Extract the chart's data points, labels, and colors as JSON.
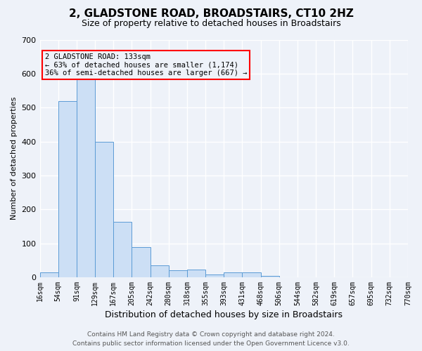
{
  "title": "2, GLADSTONE ROAD, BROADSTAIRS, CT10 2HZ",
  "subtitle": "Size of property relative to detached houses in Broadstairs",
  "xlabel": "Distribution of detached houses by size in Broadstairs",
  "ylabel": "Number of detached properties",
  "footer_line1": "Contains HM Land Registry data © Crown copyright and database right 2024.",
  "footer_line2": "Contains public sector information licensed under the Open Government Licence v3.0.",
  "bin_labels": [
    "16sqm",
    "54sqm",
    "91sqm",
    "129sqm",
    "167sqm",
    "205sqm",
    "242sqm",
    "280sqm",
    "318sqm",
    "355sqm",
    "393sqm",
    "431sqm",
    "468sqm",
    "506sqm",
    "544sqm",
    "582sqm",
    "619sqm",
    "657sqm",
    "695sqm",
    "732sqm",
    "770sqm"
  ],
  "bar_heights": [
    14,
    520,
    590,
    400,
    163,
    88,
    35,
    21,
    22,
    9,
    14,
    14,
    5,
    0,
    0,
    0,
    0,
    0,
    0,
    0
  ],
  "bar_color": "#ccdff5",
  "bar_edge_color": "#5b9bd5",
  "background_color": "#eef2f9",
  "grid_color": "#ffffff",
  "annotation_text_line1": "2 GLADSTONE ROAD: 133sqm",
  "annotation_text_line2": "← 63% of detached houses are smaller (1,174)",
  "annotation_text_line3": "36% of semi-detached houses are larger (667) →",
  "ylim": [
    0,
    700
  ],
  "yticks": [
    0,
    100,
    200,
    300,
    400,
    500,
    600,
    700
  ],
  "title_fontsize": 11,
  "subtitle_fontsize": 9,
  "ylabel_fontsize": 8,
  "xlabel_fontsize": 9,
  "tick_fontsize": 8,
  "xtick_fontsize": 7
}
